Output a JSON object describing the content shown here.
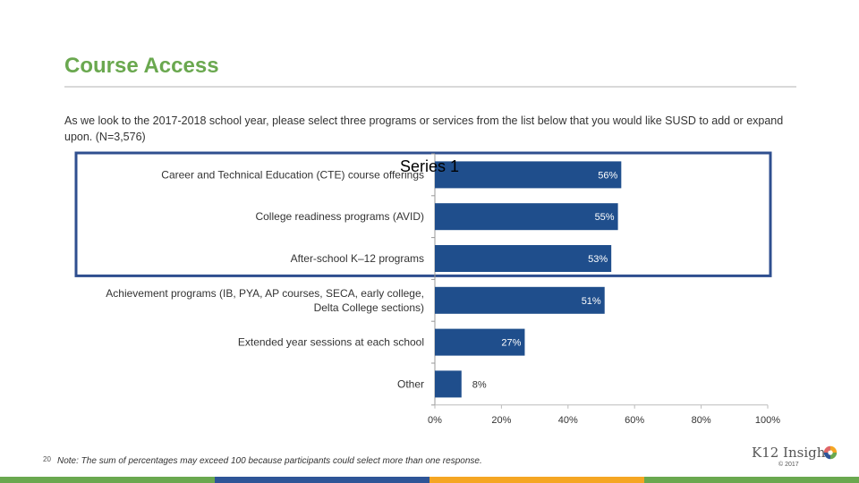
{
  "slide": {
    "title": "Course Access",
    "question": "As we look to the 2017-2018 school year, please select three programs or services from the list below that you would like SUSD to add or expand upon. (N=3,576)",
    "note": "Note: The sum of percentages may exceed 100 because participants could select more than one response.",
    "page_number": "20"
  },
  "logo": {
    "text": "K12 Insight",
    "copyright": "© 2017"
  },
  "colors": {
    "title": "#6aa84f",
    "bar": "#1f4e8c",
    "highlight_box": "#2f4f8f",
    "footer": [
      "#6aa84f",
      "#2e5597",
      "#f5a623",
      "#6aa84f"
    ]
  },
  "chart_data": {
    "type": "bar",
    "orientation": "horizontal",
    "title": "Series 1",
    "categories": [
      [
        "Career and Technical Education (CTE) course offerings"
      ],
      [
        "College readiness programs (AVID)"
      ],
      [
        "After-school K–12 programs"
      ],
      [
        "Achievement programs (IB, PYA, AP courses, SECA, early college,",
        "Delta College sections)"
      ],
      [
        "Extended year sessions at each school"
      ],
      [
        "Other"
      ]
    ],
    "values": [
      56,
      55,
      53,
      51,
      27,
      8
    ],
    "value_labels": [
      "56%",
      "55%",
      "53%",
      "51%",
      "27%",
      "8%"
    ],
    "xlim": [
      0,
      100
    ],
    "xticks": [
      0,
      20,
      40,
      60,
      80,
      100
    ],
    "xtick_labels": [
      "0%",
      "20%",
      "40%",
      "60%",
      "80%",
      "100%"
    ],
    "highlighted_categories": 3
  }
}
